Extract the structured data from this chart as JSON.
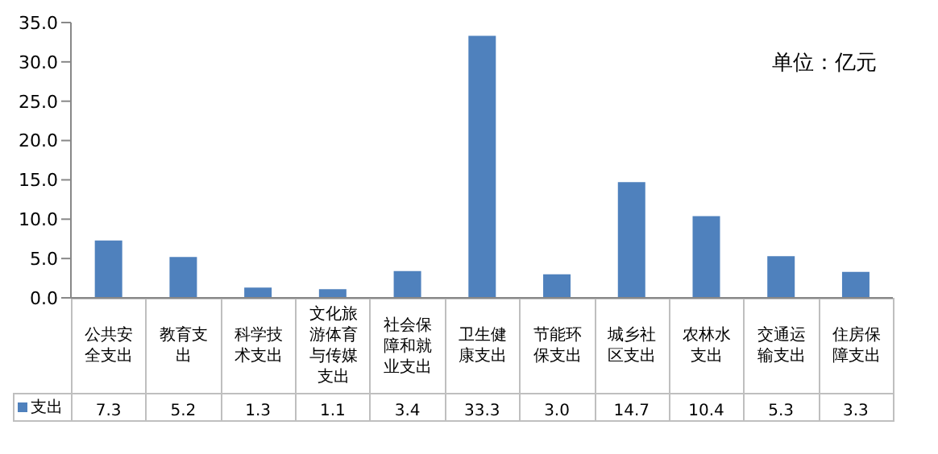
{
  "chart_data": {
    "type": "bar",
    "categories": [
      "公共安全支出",
      "教育支出",
      "科学技术支出",
      "文化旅游体育与传媒支出",
      "社会保障和就业支出",
      "卫生健康支出",
      "节能环保支出",
      "城乡社区支出",
      "农林水支出",
      "交通运输支出",
      "住房保障支出"
    ],
    "series": [
      {
        "name": "支出",
        "color": "#4f81bd",
        "values": [
          7.3,
          5.2,
          1.3,
          1.1,
          3.4,
          33.3,
          3.0,
          14.7,
          10.4,
          5.3,
          3.3
        ],
        "value_labels": [
          "7.3",
          "5.2",
          "1.3",
          "1.1",
          "3.4",
          "33.3",
          "3.0",
          "14.7",
          "10.4",
          "5.3",
          "3.3"
        ]
      }
    ],
    "ylim": [
      0,
      35
    ],
    "yticks": [
      {
        "value": 0,
        "label": "0.0"
      },
      {
        "value": 5,
        "label": "5.0"
      },
      {
        "value": 10,
        "label": "10.0"
      },
      {
        "value": 15,
        "label": "15.0"
      },
      {
        "value": 20,
        "label": "20.0"
      },
      {
        "value": 25,
        "label": "25.0"
      },
      {
        "value": 30,
        "label": "30.0"
      },
      {
        "value": 35,
        "label": "35.0"
      }
    ],
    "annotations": [
      "单位：亿元"
    ],
    "legend": "bottom",
    "grid": false
  }
}
